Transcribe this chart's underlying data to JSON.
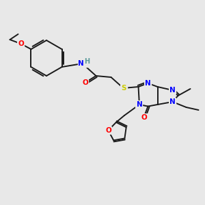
{
  "bg_color": "#e8e8e8",
  "bond_color": "#1a1a1a",
  "atom_colors": {
    "N": "#0000ff",
    "O": "#ff0000",
    "S": "#cccc00",
    "H": "#5a9a9a",
    "C": "#1a1a1a"
  }
}
